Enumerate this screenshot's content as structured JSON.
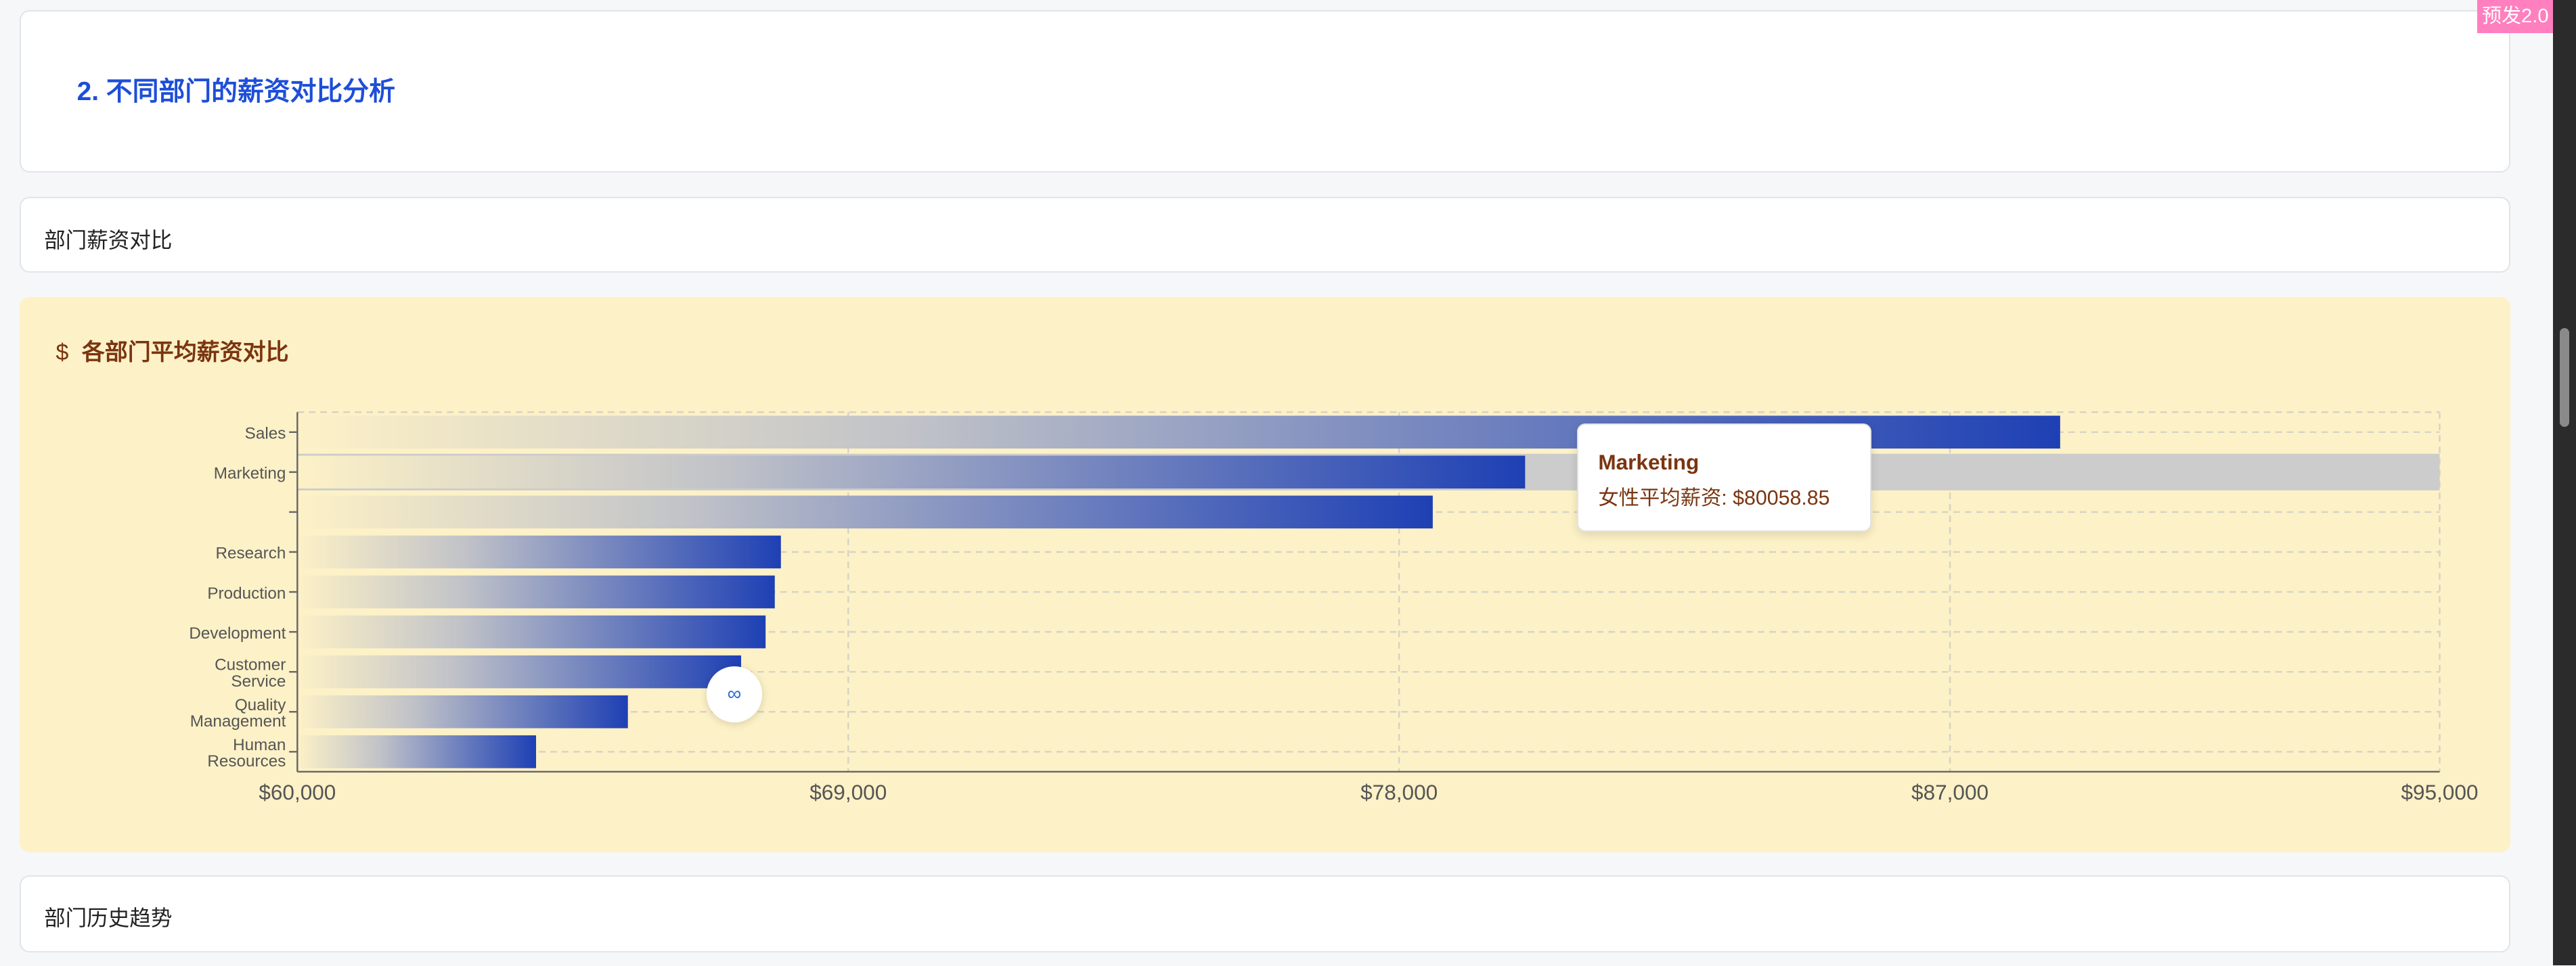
{
  "badge": "预发2.0",
  "section_title": "2. 不同部门的薪资对比分析",
  "sub_card_1": "部门薪资对比",
  "chart_card": {
    "icon": "dollar-icon",
    "icon_glyph": "$",
    "title": "各部门平均薪资对比"
  },
  "sub_card_2": "部门历史趋势",
  "tooltip": {
    "name": "Marketing",
    "line": "女性平均薪资: $80058.85"
  },
  "chart_data": {
    "type": "bar",
    "orientation": "horizontal",
    "categories": [
      "Sales",
      "Marketing",
      "",
      "Research",
      "Production",
      "Development",
      "Customer Service",
      "Quality Management",
      "Human Resources"
    ],
    "values": [
      88800,
      80058.85,
      78550,
      67900,
      67800,
      67650,
      67250,
      65400,
      63900
    ],
    "xlim": [
      60000,
      95000
    ],
    "xticks": [
      "$60,000",
      "$69,000",
      "$78,000",
      "$87,000",
      "$95,000"
    ],
    "xtick_values": [
      60000,
      69000,
      78000,
      87000,
      95000
    ],
    "grid": true,
    "highlighted": "Marketing",
    "colors": {
      "start": "#fdf1c7",
      "end": "#1e40b4",
      "highlight_bg": "#cccccc"
    }
  }
}
